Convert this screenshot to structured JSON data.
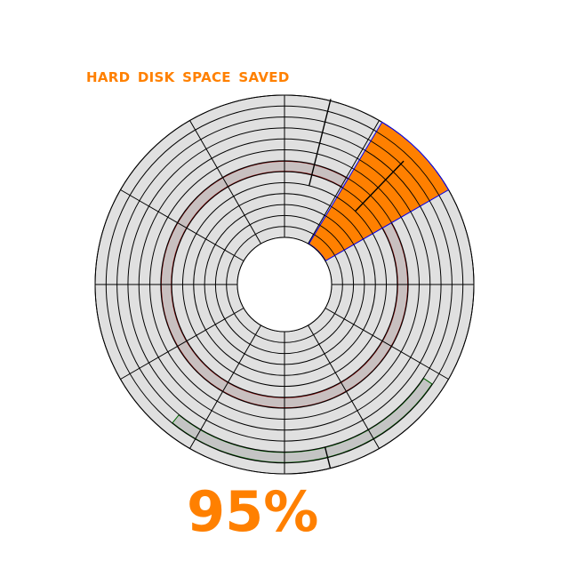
{
  "title": "HARD  DISK  SPACE  SAVED",
  "percent_text": "95%",
  "saved_fraction": 0.95,
  "colors": {
    "accent": "#ff8000",
    "platter": "#e0e0e0",
    "lines": "#000000",
    "saved_sector_outline": "#0000ff",
    "red_track": "#800000",
    "green_track": "#006400"
  },
  "disk": {
    "tracks": 13,
    "radial_spokes": 12
  }
}
